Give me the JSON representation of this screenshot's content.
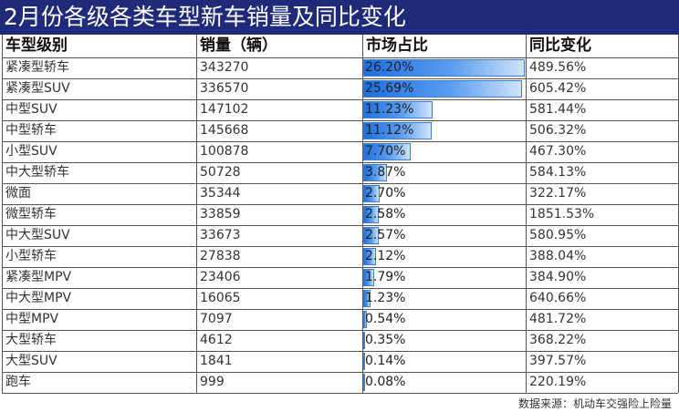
{
  "title": "2月份各级各类车型新车销量及同比变化",
  "source": "数据来源：机动车交强险上险量",
  "chart_data": {
    "type": "table",
    "columns": [
      "车型级别",
      "销量（辆）",
      "市场占比",
      "同比变化"
    ],
    "rows": [
      {
        "segment": "紧凑型轿车",
        "sales": "343270",
        "share": 26.2,
        "share_label": "26.20%",
        "yoy": "489.56%"
      },
      {
        "segment": "紧凑型SUV",
        "sales": "336570",
        "share": 25.69,
        "share_label": "25.69%",
        "yoy": "605.42%"
      },
      {
        "segment": "中型SUV",
        "sales": "147102",
        "share": 11.23,
        "share_label": "11.23%",
        "yoy": "581.44%"
      },
      {
        "segment": "中型轿车",
        "sales": "145668",
        "share": 11.12,
        "share_label": "11.12%",
        "yoy": "506.32%"
      },
      {
        "segment": "小型SUV",
        "sales": "100878",
        "share": 7.7,
        "share_label": "7.70%",
        "yoy": "467.30%"
      },
      {
        "segment": "中大型轿车",
        "sales": "50728",
        "share": 3.87,
        "share_label": "3.87%",
        "yoy": "584.13%"
      },
      {
        "segment": "微面",
        "sales": "35344",
        "share": 2.7,
        "share_label": "2.70%",
        "yoy": "322.17%"
      },
      {
        "segment": "微型轿车",
        "sales": "33859",
        "share": 2.58,
        "share_label": "2.58%",
        "yoy": "1851.53%"
      },
      {
        "segment": "中大型SUV",
        "sales": "33673",
        "share": 2.57,
        "share_label": "2.57%",
        "yoy": "580.95%"
      },
      {
        "segment": "小型轿车",
        "sales": "27838",
        "share": 2.12,
        "share_label": "2.12%",
        "yoy": "388.04%"
      },
      {
        "segment": "紧凑型MPV",
        "sales": "23406",
        "share": 1.79,
        "share_label": "1.79%",
        "yoy": "384.90%"
      },
      {
        "segment": "中大型MPV",
        "sales": "16065",
        "share": 1.23,
        "share_label": "1.23%",
        "yoy": "640.66%"
      },
      {
        "segment": "中型MPV",
        "sales": "7097",
        "share": 0.54,
        "share_label": "0.54%",
        "yoy": "481.72%"
      },
      {
        "segment": "大型轿车",
        "sales": "4612",
        "share": 0.35,
        "share_label": "0.35%",
        "yoy": "368.22%"
      },
      {
        "segment": "大型SUV",
        "sales": "1841",
        "share": 0.14,
        "share_label": "0.14%",
        "yoy": "397.57%"
      },
      {
        "segment": "跑车",
        "sales": "999",
        "share": 0.08,
        "share_label": "0.08%",
        "yoy": "220.19%"
      }
    ],
    "share_bar_max": 26.2
  }
}
